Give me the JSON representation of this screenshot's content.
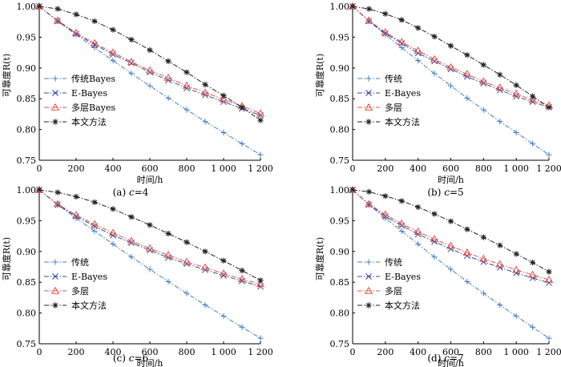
{
  "chart_data": [
    {
      "type": "line",
      "caption": "(a)  c=4",
      "xlabel": "时间/h",
      "ylabel": "可靠度R(t)",
      "xlim": [
        0,
        1200
      ],
      "ylim": [
        0.75,
        1.0
      ],
      "xticks": [
        0,
        200,
        400,
        600,
        800,
        1000,
        1200
      ],
      "xtick_labels": [
        "0",
        "200",
        "400",
        "600",
        "800",
        "1 000",
        "1 200"
      ],
      "yticks": [
        0.75,
        0.8,
        0.85,
        0.9,
        0.95,
        1.0
      ],
      "ytick_labels": [
        "0.75",
        "0.80",
        "0.85",
        "0.90",
        "0.95",
        "1.00"
      ],
      "legend_position": "bottom-left",
      "x": [
        0,
        100,
        200,
        300,
        400,
        500,
        600,
        700,
        800,
        900,
        1000,
        1100,
        1200
      ],
      "series": [
        {
          "name": "传统Bayes",
          "color": "#4a7fc0",
          "marker": "plus",
          "values": [
            1.0,
            0.976,
            0.954,
            0.933,
            0.912,
            0.891,
            0.871,
            0.851,
            0.832,
            0.813,
            0.795,
            0.777,
            0.759
          ]
        },
        {
          "name": "E-Bayes",
          "color": "#3a4a9a",
          "marker": "x",
          "values": [
            1.0,
            0.976,
            0.955,
            0.938,
            0.922,
            0.908,
            0.893,
            0.88,
            0.867,
            0.856,
            0.845,
            0.834,
            0.823
          ]
        },
        {
          "name": "多层Bayes",
          "color": "#e0504a",
          "marker": "triangle",
          "values": [
            1.0,
            0.977,
            0.957,
            0.94,
            0.925,
            0.91,
            0.896,
            0.884,
            0.871,
            0.86,
            0.849,
            0.838,
            0.826
          ]
        },
        {
          "name": "本文方法",
          "color": "#222222",
          "marker": "star",
          "values": [
            1.0,
            0.996,
            0.987,
            0.976,
            0.962,
            0.946,
            0.929,
            0.911,
            0.893,
            0.873,
            0.855,
            0.836,
            0.815
          ]
        }
      ]
    },
    {
      "type": "line",
      "caption": "(b)  c=5",
      "xlabel": "时间/h",
      "ylabel": "可靠度R(t)",
      "xlim": [
        0,
        1200
      ],
      "ylim": [
        0.75,
        1.0
      ],
      "xticks": [
        0,
        200,
        400,
        600,
        800,
        1000,
        1200
      ],
      "xtick_labels": [
        "0",
        "200",
        "400",
        "600",
        "800",
        "1 000",
        "1 200"
      ],
      "yticks": [
        0.75,
        0.8,
        0.85,
        0.9,
        0.95,
        1.0
      ],
      "ytick_labels": [
        "0.75",
        "0.80",
        "0.85",
        "0.90",
        "0.95",
        "1.00"
      ],
      "legend_position": "bottom-left",
      "x": [
        0,
        100,
        200,
        300,
        400,
        500,
        600,
        700,
        800,
        900,
        1000,
        1100,
        1200
      ],
      "series": [
        {
          "name": "传统",
          "color": "#4a7fc0",
          "marker": "plus",
          "values": [
            1.0,
            0.976,
            0.954,
            0.933,
            0.912,
            0.891,
            0.871,
            0.851,
            0.832,
            0.813,
            0.795,
            0.777,
            0.759
          ]
        },
        {
          "name": "E-Bayes",
          "color": "#3a4a9a",
          "marker": "x",
          "values": [
            1.0,
            0.976,
            0.956,
            0.94,
            0.924,
            0.911,
            0.898,
            0.886,
            0.875,
            0.864,
            0.854,
            0.845,
            0.836
          ]
        },
        {
          "name": "多层",
          "color": "#e0504a",
          "marker": "triangle",
          "values": [
            1.0,
            0.977,
            0.958,
            0.942,
            0.928,
            0.914,
            0.901,
            0.89,
            0.878,
            0.868,
            0.858,
            0.848,
            0.839
          ]
        },
        {
          "name": "本文方法",
          "color": "#222222",
          "marker": "star",
          "values": [
            1.0,
            0.996,
            0.988,
            0.978,
            0.965,
            0.951,
            0.936,
            0.921,
            0.905,
            0.889,
            0.872,
            0.854,
            0.836
          ]
        }
      ]
    },
    {
      "type": "line",
      "caption": "(c)  c=6",
      "xlabel": "时间/h",
      "ylabel": "可靠度R(t)",
      "xlim": [
        0,
        1200
      ],
      "ylim": [
        0.75,
        1.0
      ],
      "xticks": [
        0,
        200,
        400,
        600,
        800,
        1000,
        1200
      ],
      "xtick_labels": [
        "0",
        "200",
        "400",
        "600",
        "800",
        "1 000",
        "1 200"
      ],
      "yticks": [
        0.75,
        0.8,
        0.85,
        0.9,
        0.95,
        1.0
      ],
      "ytick_labels": [
        "0.75",
        "0.80",
        "0.85",
        "0.90",
        "0.95",
        "1.00"
      ],
      "legend_position": "bottom-left",
      "x": [
        0,
        100,
        200,
        300,
        400,
        500,
        600,
        700,
        800,
        900,
        1000,
        1100,
        1200
      ],
      "series": [
        {
          "name": "传统",
          "color": "#4a7fc0",
          "marker": "plus",
          "values": [
            1.0,
            0.976,
            0.954,
            0.933,
            0.912,
            0.891,
            0.871,
            0.851,
            0.832,
            0.813,
            0.795,
            0.777,
            0.759
          ]
        },
        {
          "name": "E-Bayes",
          "color": "#3a4a9a",
          "marker": "x",
          "values": [
            1.0,
            0.976,
            0.957,
            0.941,
            0.926,
            0.914,
            0.902,
            0.89,
            0.88,
            0.87,
            0.861,
            0.852,
            0.843
          ]
        },
        {
          "name": "多层",
          "color": "#e0504a",
          "marker": "triangle",
          "values": [
            1.0,
            0.977,
            0.959,
            0.944,
            0.93,
            0.917,
            0.905,
            0.894,
            0.883,
            0.874,
            0.864,
            0.855,
            0.847
          ]
        },
        {
          "name": "本文方法",
          "color": "#222222",
          "marker": "star",
          "values": [
            1.0,
            0.996,
            0.989,
            0.98,
            0.969,
            0.956,
            0.943,
            0.929,
            0.915,
            0.9,
            0.885,
            0.869,
            0.853
          ]
        }
      ]
    },
    {
      "type": "line",
      "caption": "(d)  c=7",
      "xlabel": "时间/h",
      "ylabel": "可靠度R(t)",
      "xlim": [
        0,
        1200
      ],
      "ylim": [
        0.75,
        1.0
      ],
      "xticks": [
        0,
        200,
        400,
        600,
        800,
        1000,
        1200
      ],
      "xtick_labels": [
        "0",
        "200",
        "400",
        "600",
        "800",
        "1 000",
        "1 200"
      ],
      "yticks": [
        0.75,
        0.8,
        0.85,
        0.9,
        0.95,
        1.0
      ],
      "ytick_labels": [
        "0.75",
        "0.80",
        "0.85",
        "0.90",
        "0.95",
        "1.00"
      ],
      "legend_position": "bottom-left",
      "x": [
        0,
        100,
        200,
        300,
        400,
        500,
        600,
        700,
        800,
        900,
        1000,
        1100,
        1200
      ],
      "series": [
        {
          "name": "传统",
          "color": "#4a7fc0",
          "marker": "plus",
          "values": [
            1.0,
            0.976,
            0.954,
            0.933,
            0.912,
            0.891,
            0.871,
            0.851,
            0.832,
            0.813,
            0.795,
            0.777,
            0.759
          ]
        },
        {
          "name": "E-Bayes",
          "color": "#3a4a9a",
          "marker": "x",
          "values": [
            1.0,
            0.976,
            0.957,
            0.942,
            0.928,
            0.916,
            0.904,
            0.893,
            0.883,
            0.874,
            0.865,
            0.857,
            0.849
          ]
        },
        {
          "name": "多层",
          "color": "#e0504a",
          "marker": "triangle",
          "values": [
            1.0,
            0.977,
            0.96,
            0.945,
            0.932,
            0.92,
            0.909,
            0.898,
            0.888,
            0.879,
            0.87,
            0.862,
            0.854
          ]
        },
        {
          "name": "本文方法",
          "color": "#222222",
          "marker": "star",
          "values": [
            1.0,
            0.997,
            0.99,
            0.982,
            0.972,
            0.961,
            0.949,
            0.936,
            0.923,
            0.91,
            0.896,
            0.882,
            0.867
          ]
        }
      ]
    }
  ]
}
